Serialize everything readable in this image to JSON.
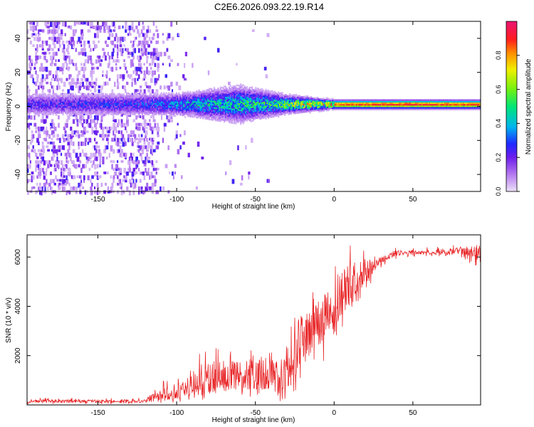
{
  "title": "C2E6.2026.093.22.19.R14",
  "chart_data": [
    {
      "type": "heatmap",
      "xlabel": "Height of straight line (km)",
      "ylabel": "Frequency (Hz)",
      "xlim": [
        -195,
        93
      ],
      "ylim": [
        -50,
        50
      ],
      "x_ticks": [
        -150,
        -100,
        -50,
        0,
        50
      ],
      "y_ticks": [
        -40,
        -20,
        0,
        20,
        40
      ],
      "colorbar": {
        "label": "Normalized spectral amplitude",
        "range": [
          0,
          1
        ],
        "ticks": [
          "0.0",
          "0.2",
          "0.4",
          "0.6",
          "0.8"
        ]
      },
      "features": {
        "noisy_region_km": [
          -195,
          -112
        ],
        "sparse_region_km": [
          -112,
          -95
        ],
        "center_frequency_hz": 1,
        "band_halfwidth_hz": [
          {
            "x": -195,
            "hw": 5
          },
          {
            "x": -100,
            "hw": 5
          },
          {
            "x": -60,
            "hw": 8
          },
          {
            "x": -30,
            "hw": 4
          },
          {
            "x": 0,
            "hw": 2
          },
          {
            "x": 93,
            "hw": 2
          }
        ],
        "peak_amplitude": [
          {
            "x": -195,
            "a": 0.25
          },
          {
            "x": -120,
            "a": 0.3
          },
          {
            "x": -100,
            "a": 0.4
          },
          {
            "x": -70,
            "a": 0.5
          },
          {
            "x": -40,
            "a": 0.55
          },
          {
            "x": -20,
            "a": 0.8
          },
          {
            "x": 0,
            "a": 0.88
          },
          {
            "x": 40,
            "a": 0.95
          },
          {
            "x": 93,
            "a": 0.9
          }
        ]
      }
    },
    {
      "type": "line",
      "xlabel": "Height of straight line (km)",
      "ylabel": "SNR (10 * v/v)",
      "xlim": [
        -195,
        93
      ],
      "ylim": [
        0,
        6900
      ],
      "x_ticks": [
        -150,
        -100,
        -50,
        0,
        50
      ],
      "y_ticks": [
        2000,
        4000,
        6000
      ],
      "color": "#e8282a",
      "series": [
        {
          "name": "SNR",
          "envelope_x": [
            -195,
            -150,
            -120,
            -115,
            -100,
            -90,
            -80,
            -70,
            -60,
            -50,
            -40,
            -35,
            -30,
            -25,
            -20,
            -10,
            0,
            10,
            20,
            30,
            40,
            50,
            60,
            70,
            80,
            93
          ],
          "lower": [
            40,
            40,
            40,
            60,
            100,
            150,
            250,
            300,
            300,
            300,
            400,
            150,
            200,
            400,
            600,
            1500,
            2400,
            3400,
            4600,
            5600,
            5950,
            6000,
            6050,
            6000,
            5950,
            5500
          ],
          "upper": [
            280,
            280,
            300,
            750,
            1300,
            1700,
            2700,
            2600,
            2400,
            2900,
            3100,
            2700,
            3500,
            4200,
            4500,
            4800,
            5700,
            6600,
            6400,
            6100,
            6400,
            6350,
            6400,
            6450,
            6500,
            6600
          ],
          "mean": [
            150,
            150,
            160,
            300,
            550,
            750,
            1100,
            1200,
            1150,
            1200,
            1400,
            900,
            1500,
            2200,
            2700,
            3300,
            4100,
            4900,
            5500,
            5900,
            6150,
            6200,
            6200,
            6200,
            6250,
            6200
          ]
        }
      ]
    }
  ]
}
